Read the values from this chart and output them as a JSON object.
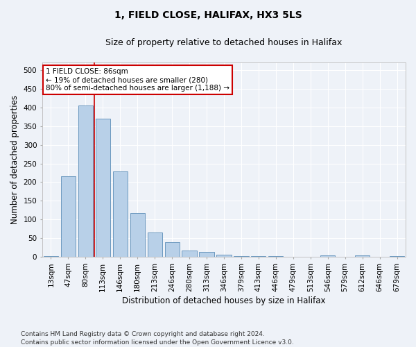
{
  "title1": "1, FIELD CLOSE, HALIFAX, HX3 5LS",
  "title2": "Size of property relative to detached houses in Halifax",
  "xlabel": "Distribution of detached houses by size in Halifax",
  "ylabel": "Number of detached properties",
  "categories": [
    "13sqm",
    "47sqm",
    "80sqm",
    "113sqm",
    "146sqm",
    "180sqm",
    "213sqm",
    "246sqm",
    "280sqm",
    "313sqm",
    "346sqm",
    "379sqm",
    "413sqm",
    "446sqm",
    "479sqm",
    "513sqm",
    "546sqm",
    "579sqm",
    "612sqm",
    "646sqm",
    "679sqm"
  ],
  "values": [
    3,
    215,
    405,
    370,
    228,
    118,
    65,
    40,
    18,
    13,
    6,
    2,
    2,
    2,
    1,
    1,
    5,
    1,
    5,
    1,
    2
  ],
  "bar_color": "#b8d0e8",
  "bar_edge_color": "#5b8db8",
  "vline_x": 2.5,
  "vline_color": "#cc0000",
  "annotation_text": "1 FIELD CLOSE: 86sqm\n← 19% of detached houses are smaller (280)\n80% of semi-detached houses are larger (1,188) →",
  "annotation_box_color": "#ffffff",
  "annotation_box_edge": "#cc0000",
  "ylim": [
    0,
    520
  ],
  "yticks": [
    0,
    50,
    100,
    150,
    200,
    250,
    300,
    350,
    400,
    450,
    500
  ],
  "bg_color": "#eef2f8",
  "plot_bg_color": "#eef2f8",
  "grid_color": "#ffffff",
  "footnote": "Contains HM Land Registry data © Crown copyright and database right 2024.\nContains public sector information licensed under the Open Government Licence v3.0.",
  "title1_fontsize": 10,
  "title2_fontsize": 9,
  "xlabel_fontsize": 8.5,
  "ylabel_fontsize": 8.5,
  "tick_fontsize": 7.5,
  "annot_fontsize": 7.5,
  "footnote_fontsize": 6.5
}
